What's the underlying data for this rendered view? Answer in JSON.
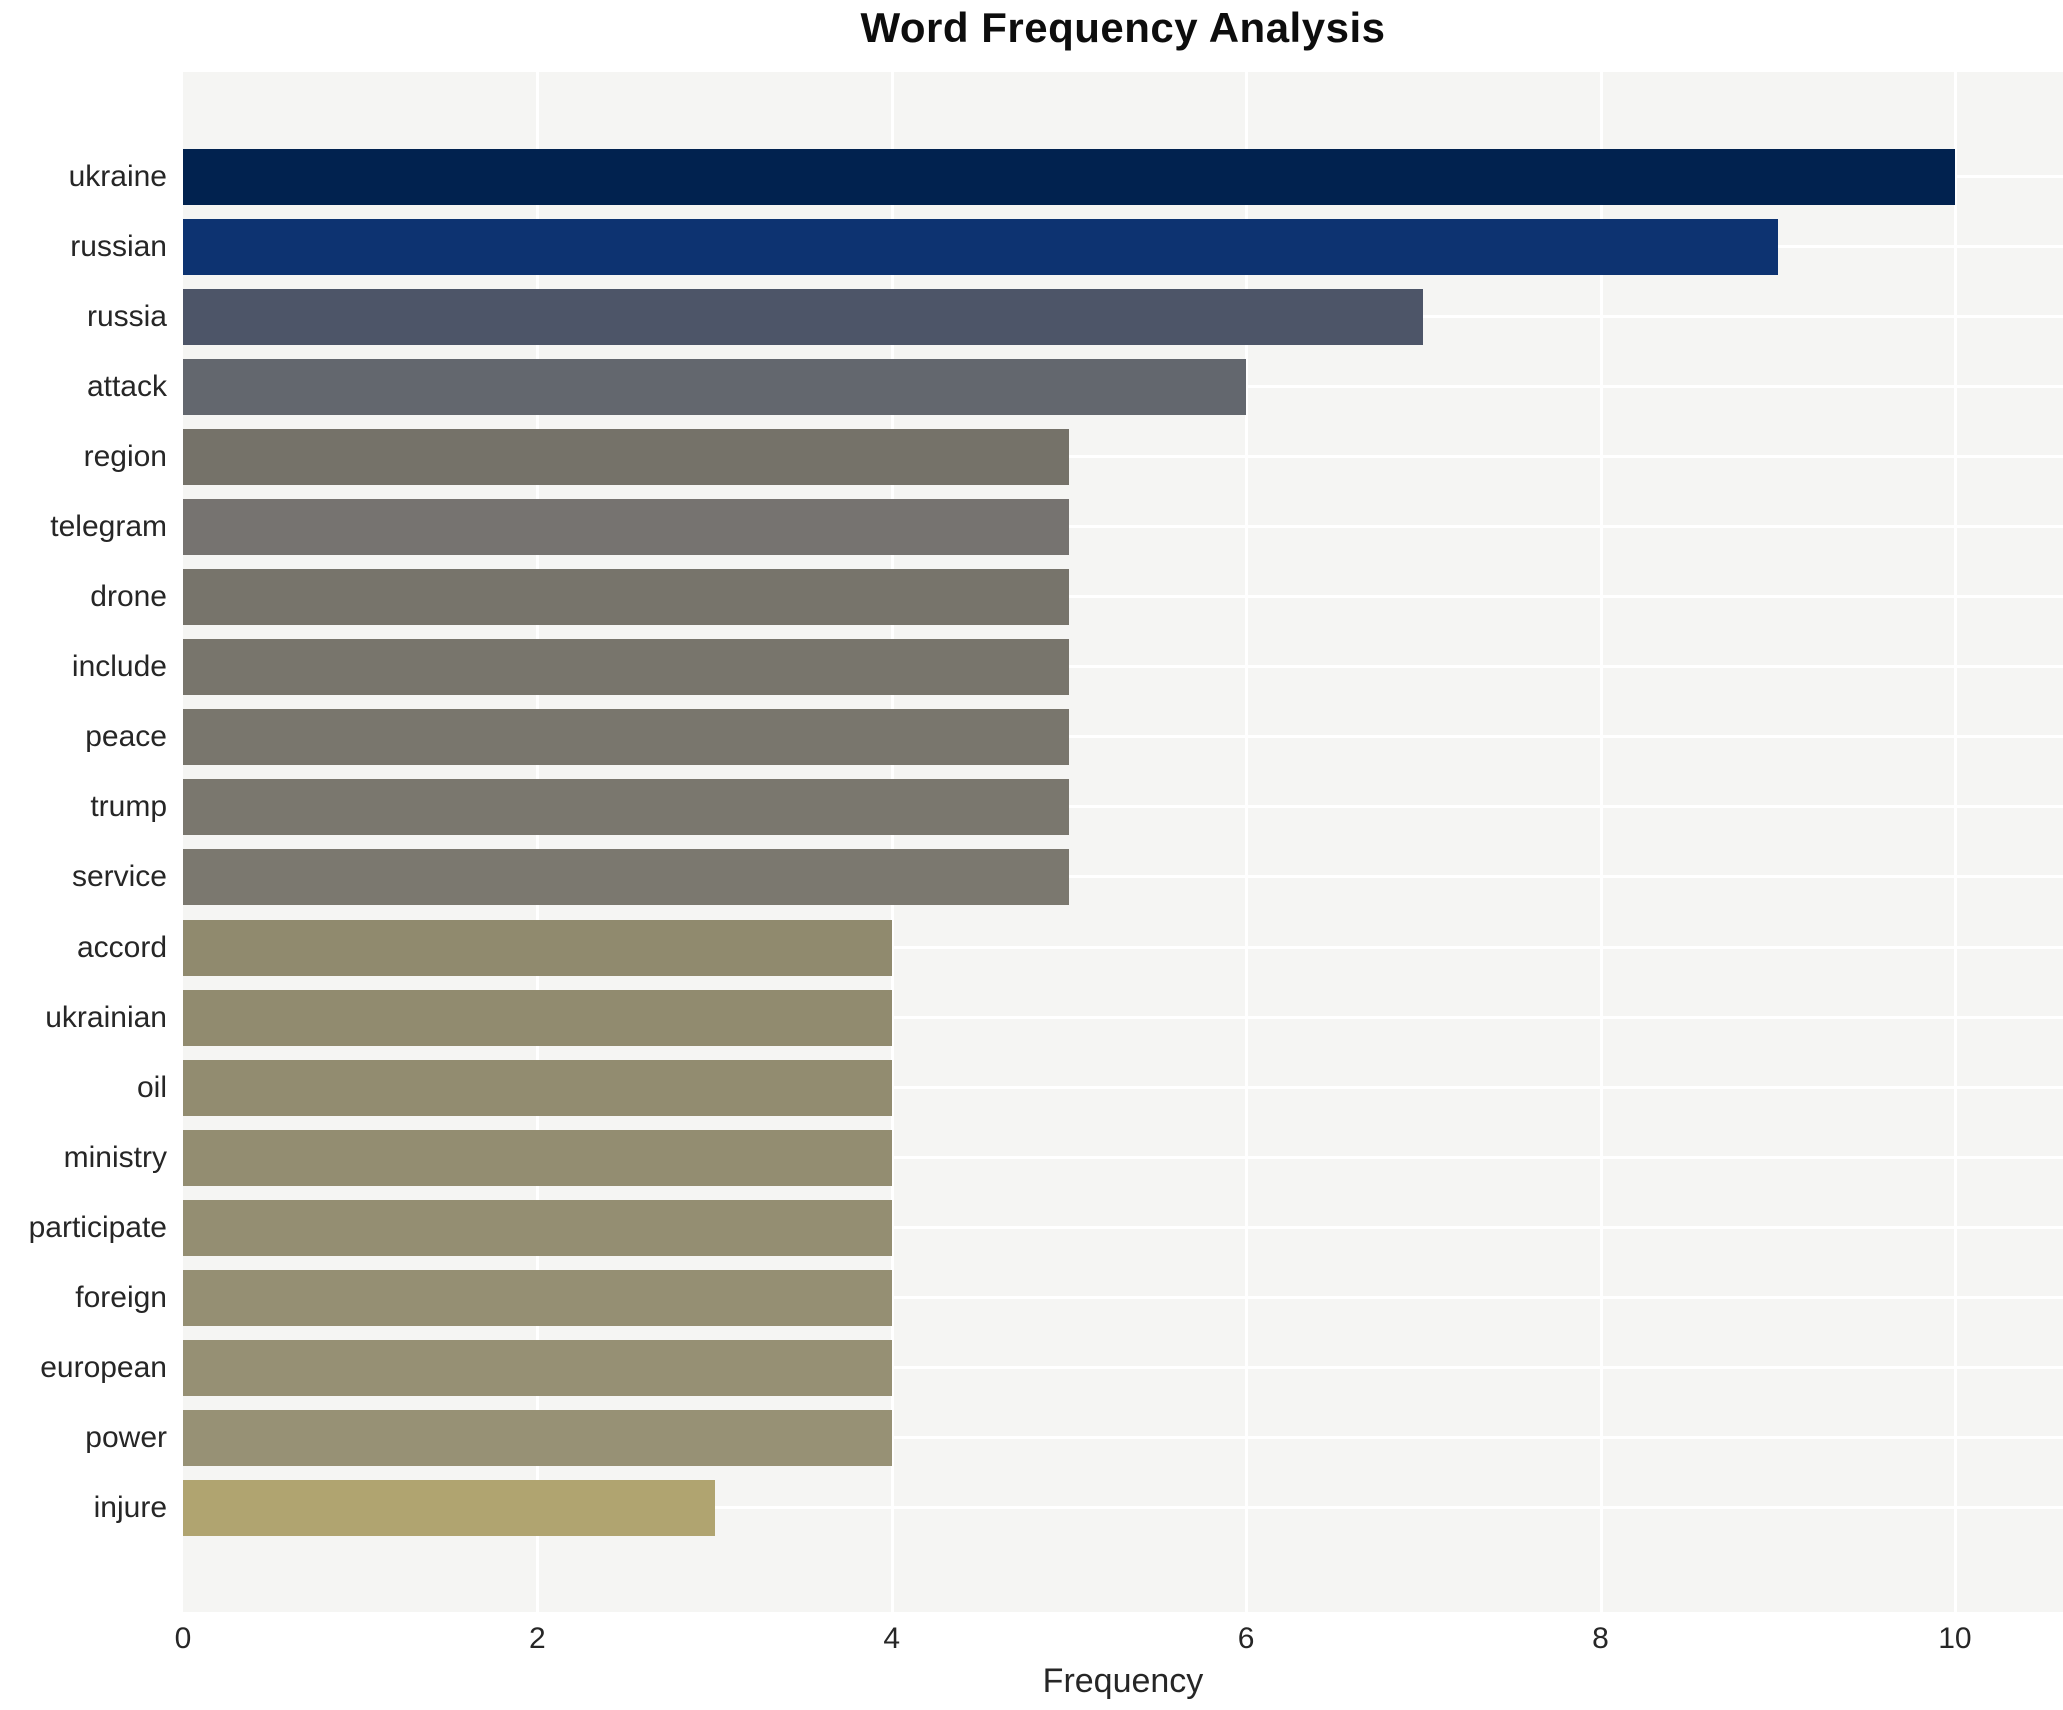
{
  "chart_data": {
    "type": "bar",
    "orientation": "horizontal",
    "title": "Word Frequency Analysis",
    "xlabel": "Frequency",
    "ylabel": "",
    "categories": [
      "ukraine",
      "russian",
      "russia",
      "attack",
      "region",
      "telegram",
      "drone",
      "include",
      "peace",
      "trump",
      "service",
      "accord",
      "ukrainian",
      "oil",
      "ministry",
      "participate",
      "foreign",
      "european",
      "power",
      "injure"
    ],
    "values": [
      10,
      9,
      7,
      6,
      5,
      5,
      5,
      5,
      5,
      5,
      5,
      4,
      4,
      4,
      4,
      4,
      4,
      4,
      4,
      3
    ],
    "bar_colors": [
      "#01224f",
      "#0d3371",
      "#4d5568",
      "#63676e",
      "#757269",
      "#767370",
      "#77746b",
      "#78756c",
      "#79766d",
      "#7a776e",
      "#7b786f",
      "#908a6e",
      "#918b6f",
      "#928c70",
      "#938d71",
      "#948e72",
      "#958f73",
      "#969074",
      "#979175",
      "#b0a470"
    ],
    "xticks": [
      0,
      2,
      4,
      6,
      8,
      10
    ],
    "xtick_labels": [
      "0",
      "2",
      "4",
      "6",
      "8",
      "10"
    ],
    "xlim": [
      0,
      10.61
    ],
    "grid": true,
    "legend": false,
    "colors": {
      "figure_background": "#ffffff",
      "plot_background": "#f5f5f3",
      "gridline": "#ffffff",
      "tick_text": "#262626",
      "title_text": "#0d0d0d"
    }
  }
}
